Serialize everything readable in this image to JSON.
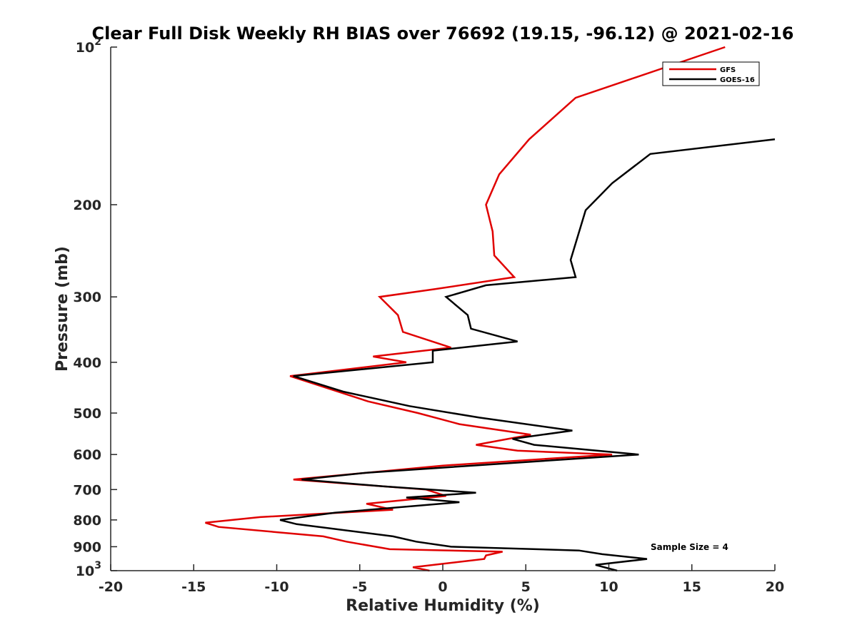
{
  "chart_data": {
    "type": "line",
    "title": "Clear Full Disk Weekly RH BIAS over 76692 (19.15, -96.12) @ 2021-02-16",
    "xlabel": "Relative Humidity (%)",
    "ylabel": "Pressure (mb)",
    "xlim": [
      -20,
      20
    ],
    "ylim": [
      100,
      1000
    ],
    "yscale": "log",
    "y_reversed": true,
    "grid": false,
    "legend_position": "top-right",
    "x_ticks": [
      {
        "value": -20,
        "label": "-20"
      },
      {
        "value": -15,
        "label": "-15"
      },
      {
        "value": -10,
        "label": "-10"
      },
      {
        "value": -5,
        "label": "-5"
      },
      {
        "value": 0,
        "label": "0"
      },
      {
        "value": 5,
        "label": "5"
      },
      {
        "value": 10,
        "label": "10"
      },
      {
        "value": 15,
        "label": "15"
      },
      {
        "value": 20,
        "label": "20"
      }
    ],
    "y_ticks": [
      {
        "value": 100,
        "label": "10",
        "exp": "2"
      },
      {
        "value": 200,
        "label": "200"
      },
      {
        "value": 300,
        "label": "300"
      },
      {
        "value": 400,
        "label": "400"
      },
      {
        "value": 500,
        "label": "500"
      },
      {
        "value": 600,
        "label": "600"
      },
      {
        "value": 700,
        "label": "700"
      },
      {
        "value": 800,
        "label": "800"
      },
      {
        "value": 900,
        "label": "900"
      },
      {
        "value": 1000,
        "label": "10",
        "exp": "3"
      }
    ],
    "annotation": "Sample Size = 4",
    "series": [
      {
        "name": "GFS",
        "color": "#e00000",
        "points": [
          [
            17.0,
            100
          ],
          [
            8.0,
            125
          ],
          [
            5.2,
            150
          ],
          [
            3.4,
            175
          ],
          [
            2.6,
            200
          ],
          [
            3.0,
            225
          ],
          [
            3.1,
            250
          ],
          [
            4.3,
            275
          ],
          [
            -0.5,
            290
          ],
          [
            -3.8,
            300
          ],
          [
            -2.7,
            325
          ],
          [
            -2.4,
            350
          ],
          [
            0.5,
            375
          ],
          [
            -4.2,
            390
          ],
          [
            -2.2,
            400
          ],
          [
            -9.2,
            425
          ],
          [
            -4.5,
            475
          ],
          [
            -1.5,
            500
          ],
          [
            1.0,
            525
          ],
          [
            5.3,
            550
          ],
          [
            2.0,
            575
          ],
          [
            4.5,
            590
          ],
          [
            10.2,
            600
          ],
          [
            0.0,
            630
          ],
          [
            -9.0,
            670
          ],
          [
            -1.0,
            700
          ],
          [
            0.2,
            720
          ],
          [
            -4.6,
            745
          ],
          [
            -3.0,
            765
          ],
          [
            -11.0,
            790
          ],
          [
            -14.3,
            810
          ],
          [
            -13.5,
            825
          ],
          [
            -7.2,
            860
          ],
          [
            -5.8,
            880
          ],
          [
            -3.2,
            910
          ],
          [
            3.6,
            920
          ],
          [
            2.6,
            935
          ],
          [
            2.5,
            950
          ],
          [
            -1.8,
            985
          ],
          [
            -0.8,
            1000
          ]
        ]
      },
      {
        "name": "GOES-16",
        "color": "#000000",
        "points": [
          [
            20.0,
            150
          ],
          [
            12.5,
            160
          ],
          [
            10.2,
            182
          ],
          [
            8.6,
            205
          ],
          [
            7.7,
            255
          ],
          [
            8.0,
            275
          ],
          [
            2.6,
            285
          ],
          [
            0.2,
            300
          ],
          [
            1.5,
            325
          ],
          [
            1.7,
            345
          ],
          [
            4.5,
            365
          ],
          [
            -0.6,
            380
          ],
          [
            -0.6,
            400
          ],
          [
            -9.0,
            425
          ],
          [
            -6.0,
            455
          ],
          [
            -2.0,
            485
          ],
          [
            2.2,
            510
          ],
          [
            7.8,
            540
          ],
          [
            4.2,
            560
          ],
          [
            5.5,
            575
          ],
          [
            11.8,
            600
          ],
          [
            -4.6,
            650
          ],
          [
            -8.5,
            670
          ],
          [
            -3.6,
            690
          ],
          [
            2.0,
            710
          ],
          [
            -2.2,
            725
          ],
          [
            1.0,
            740
          ],
          [
            -6.5,
            775
          ],
          [
            -9.8,
            800
          ],
          [
            -8.8,
            815
          ],
          [
            -3.0,
            860
          ],
          [
            -1.6,
            880
          ],
          [
            0.5,
            900
          ],
          [
            8.2,
            915
          ],
          [
            9.6,
            930
          ],
          [
            12.3,
            950
          ],
          [
            9.2,
            975
          ],
          [
            10.5,
            1000
          ]
        ]
      }
    ]
  }
}
